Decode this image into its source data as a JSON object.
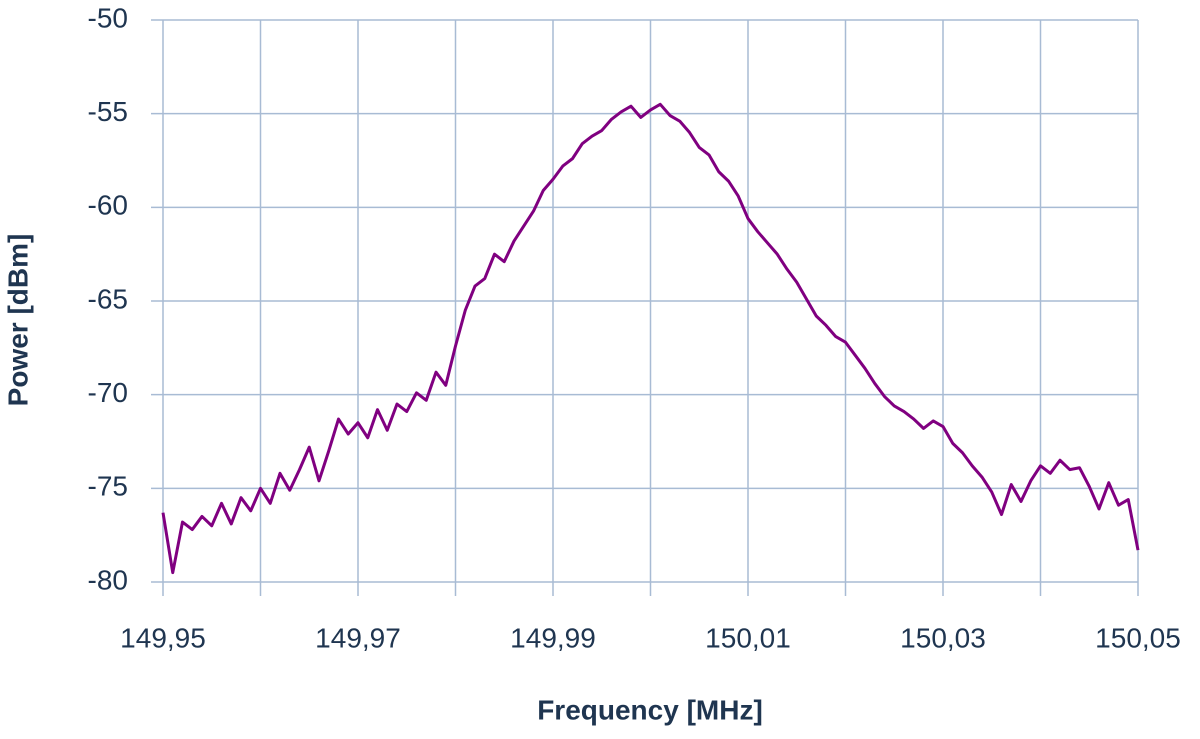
{
  "chart_data": {
    "type": "line",
    "x_label": "Frequency [MHz]",
    "y_label": "Power [dBm]",
    "x": [
      149.95,
      149.951,
      149.952,
      149.953,
      149.954,
      149.955,
      149.956,
      149.957,
      149.958,
      149.959,
      149.96,
      149.961,
      149.962,
      149.963,
      149.964,
      149.965,
      149.966,
      149.967,
      149.968,
      149.969,
      149.97,
      149.971,
      149.972,
      149.973,
      149.974,
      149.975,
      149.976,
      149.977,
      149.978,
      149.979,
      149.98,
      149.981,
      149.982,
      149.983,
      149.984,
      149.985,
      149.986,
      149.987,
      149.988,
      149.989,
      149.99,
      149.991,
      149.992,
      149.993,
      149.994,
      149.995,
      149.996,
      149.997,
      149.998,
      149.999,
      150.0,
      150.001,
      150.002,
      150.003,
      150.004,
      150.005,
      150.006,
      150.007,
      150.008,
      150.009,
      150.01,
      150.011,
      150.012,
      150.013,
      150.014,
      150.015,
      150.016,
      150.017,
      150.018,
      150.019,
      150.02,
      150.021,
      150.022,
      150.023,
      150.024,
      150.025,
      150.026,
      150.027,
      150.028,
      150.029,
      150.03,
      150.031,
      150.032,
      150.033,
      150.034,
      150.035,
      150.036,
      150.037,
      150.038,
      150.039,
      150.04,
      150.041,
      150.042,
      150.043,
      150.044,
      150.045,
      150.046,
      150.047,
      150.048,
      150.049,
      150.05
    ],
    "series": [
      {
        "color": "#800080",
        "values": [
          -76.3,
          -79.5,
          -76.8,
          -77.2,
          -76.5,
          -77.0,
          -75.8,
          -76.9,
          -75.5,
          -76.2,
          -75.0,
          -75.8,
          -74.2,
          -75.1,
          -74.0,
          -72.8,
          -74.6,
          -73.0,
          -71.3,
          -72.1,
          -71.5,
          -72.3,
          -70.8,
          -71.9,
          -70.5,
          -70.9,
          -69.9,
          -70.3,
          -68.8,
          -69.5,
          -67.4,
          -65.5,
          -64.2,
          -63.8,
          -62.5,
          -62.9,
          -61.8,
          -61.0,
          -60.2,
          -59.1,
          -58.5,
          -57.8,
          -57.4,
          -56.6,
          -56.2,
          -55.9,
          -55.3,
          -54.9,
          -54.6,
          -55.2,
          -54.8,
          -54.5,
          -55.1,
          -55.4,
          -56.0,
          -56.8,
          -57.2,
          -58.1,
          -58.6,
          -59.4,
          -60.6,
          -61.3,
          -61.9,
          -62.5,
          -63.3,
          -64.0,
          -64.9,
          -65.8,
          -66.3,
          -66.9,
          -67.2,
          -67.9,
          -68.6,
          -69.4,
          -70.1,
          -70.6,
          -70.9,
          -71.3,
          -71.8,
          -71.4,
          -71.7,
          -72.6,
          -73.1,
          -73.8,
          -74.4,
          -75.2,
          -76.4,
          -74.8,
          -75.7,
          -74.6,
          -73.8,
          -74.2,
          -73.5,
          -74.0,
          -73.9,
          -74.9,
          -76.1,
          -74.7,
          -75.9,
          -75.6,
          -78.3
        ]
      }
    ],
    "xlim": [
      149.95,
      150.05
    ],
    "xticks": [
      {
        "value": 149.95,
        "label": "149,95"
      },
      {
        "value": 149.97,
        "label": "149,97"
      },
      {
        "value": 149.99,
        "label": "149,99"
      },
      {
        "value": 150.01,
        "label": "150,01"
      },
      {
        "value": 150.03,
        "label": "150,03"
      },
      {
        "value": 150.05,
        "label": "150,05"
      }
    ],
    "xgrid": [
      149.95,
      149.96,
      149.97,
      149.98,
      149.99,
      150.0,
      150.01,
      150.02,
      150.03,
      150.04,
      150.05
    ],
    "ylim": [
      -80,
      -50
    ],
    "yticks": [
      -80,
      -75,
      -70,
      -65,
      -60,
      -55,
      -50
    ],
    "grid": true
  }
}
